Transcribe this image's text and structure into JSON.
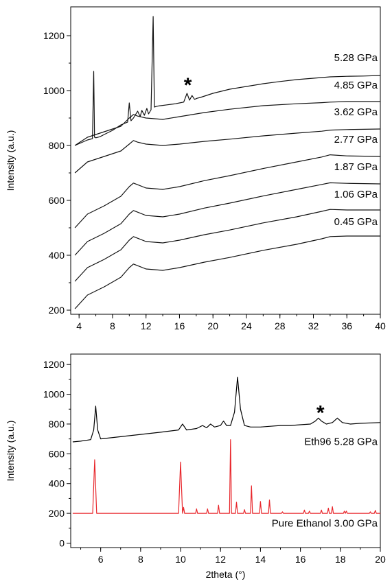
{
  "chart_data": [
    {
      "type": "line",
      "title": "",
      "xlabel": "",
      "ylabel": "Intensity (a.u.)",
      "xlim": [
        3,
        40
      ],
      "ylim": [
        185,
        1305
      ],
      "xticks": [
        4,
        8,
        12,
        16,
        20,
        24,
        28,
        32,
        36,
        40
      ],
      "yticks": [
        200,
        400,
        600,
        800,
        1000,
        1200
      ],
      "grid": false,
      "annotations": [
        {
          "text": "*",
          "x": 17.0,
          "y": 1030
        }
      ],
      "series": [
        {
          "name": "0.45 GPa",
          "label_pos": [
            40,
            510
          ],
          "x": [
            3.5,
            5,
            7,
            9,
            10,
            10.5,
            11,
            12,
            14,
            16,
            19,
            22,
            26,
            30,
            33,
            34,
            36,
            40
          ],
          "y": [
            205,
            255,
            285,
            320,
            355,
            368,
            362,
            350,
            345,
            355,
            375,
            392,
            418,
            440,
            460,
            468,
            470,
            470
          ]
        },
        {
          "name": "1.06 GPa",
          "label_pos": [
            40,
            610
          ],
          "x": [
            3.5,
            5,
            7,
            9,
            10,
            10.5,
            11,
            12,
            14,
            16,
            19,
            22,
            26,
            30,
            33,
            34,
            36,
            40
          ],
          "y": [
            305,
            355,
            385,
            420,
            455,
            468,
            462,
            450,
            445,
            455,
            475,
            492,
            518,
            540,
            560,
            567,
            565,
            565
          ]
        },
        {
          "name": "1.87 GPa",
          "label_pos": [
            40,
            710
          ],
          "x": [
            3.5,
            5,
            7,
            9,
            10,
            10.5,
            11,
            12,
            14,
            16,
            19,
            22,
            26,
            30,
            33,
            34,
            36,
            40
          ],
          "y": [
            400,
            450,
            480,
            515,
            550,
            563,
            557,
            545,
            540,
            550,
            572,
            590,
            616,
            640,
            658,
            664,
            662,
            660
          ]
        },
        {
          "name": "2.77 GPa",
          "label_pos": [
            40,
            810
          ],
          "x": [
            3.5,
            5,
            7,
            9,
            10,
            10.5,
            11,
            12,
            14,
            16,
            19,
            22,
            26,
            30,
            33,
            34,
            36,
            40
          ],
          "y": [
            500,
            550,
            580,
            615,
            650,
            663,
            657,
            645,
            640,
            650,
            672,
            690,
            716,
            740,
            758,
            766,
            762,
            760
          ]
        },
        {
          "name": "3.62 GPa",
          "label_pos": [
            40,
            910
          ],
          "x": [
            3.5,
            5,
            7,
            9,
            10,
            10.5,
            11,
            12,
            14,
            16,
            19,
            22,
            26,
            30,
            33,
            34,
            36,
            40
          ],
          "y": [
            700,
            740,
            760,
            780,
            805,
            818,
            812,
            805,
            800,
            805,
            815,
            823,
            835,
            845,
            852,
            856,
            858,
            860
          ]
        },
        {
          "name": "4.85 GPa",
          "label_pos": [
            40,
            1008
          ],
          "x": [
            3.5,
            5,
            7,
            9,
            10,
            10.5,
            11,
            12,
            14,
            16,
            19,
            22,
            26,
            30,
            33,
            34,
            36,
            40
          ],
          "y": [
            800,
            830,
            850,
            870,
            900,
            913,
            907,
            900,
            895,
            905,
            920,
            932,
            945,
            952,
            956,
            958,
            960,
            960
          ]
        },
        {
          "name": "5.28 GPa",
          "label_pos": [
            40,
            1107
          ],
          "x": [
            3.5,
            5,
            5.6,
            5.75,
            5.85,
            6.0,
            6.5,
            7,
            8,
            9,
            9.8,
            10.0,
            10.2,
            10.5,
            11.0,
            11.3,
            11.5,
            11.8,
            12.1,
            12.3,
            12.6,
            12.85,
            13.0,
            13.2,
            13.5,
            14.0,
            14.5,
            15.0,
            15.5,
            16.0,
            16.5,
            16.9,
            17.2,
            17.5,
            17.8,
            18.1,
            18.5,
            19,
            20,
            22,
            24,
            26,
            28,
            30,
            32,
            34,
            36,
            38,
            40
          ],
          "y": [
            800,
            820,
            825,
            1070,
            830,
            828,
            832,
            840,
            855,
            875,
            885,
            955,
            890,
            900,
            925,
            905,
            928,
            910,
            935,
            915,
            930,
            1270,
            940,
            942,
            944,
            946,
            948,
            950,
            952,
            955,
            958,
            990,
            965,
            982,
            968,
            972,
            975,
            980,
            990,
            1005,
            1015,
            1025,
            1033,
            1040,
            1045,
            1050,
            1052,
            1053,
            1055
          ]
        }
      ]
    },
    {
      "type": "line",
      "title": "",
      "xlabel": "2theta (°)",
      "ylabel": "Intensity (a.u.)",
      "xlim": [
        4.5,
        20
      ],
      "ylim": [
        -30,
        1270
      ],
      "xticks": [
        6,
        8,
        10,
        12,
        14,
        16,
        18,
        20
      ],
      "yticks": [
        0,
        200,
        400,
        600,
        800,
        1000,
        1200
      ],
      "grid": false,
      "annotations": [
        {
          "text": "*",
          "x": 17.0,
          "y": 895
        }
      ],
      "series": [
        {
          "name": "Eth96 5.28 GPa",
          "color": "#000000",
          "label_pos": [
            20,
            660
          ],
          "x": [
            4.6,
            5.0,
            5.5,
            5.65,
            5.75,
            5.85,
            6.0,
            7.0,
            8.0,
            9.0,
            9.9,
            10.1,
            10.3,
            10.8,
            11.1,
            11.3,
            11.5,
            11.7,
            12.0,
            12.15,
            12.3,
            12.5,
            12.7,
            12.85,
            13.0,
            13.2,
            13.5,
            14.0,
            14.5,
            15.0,
            15.5,
            16.0,
            16.5,
            16.75,
            16.9,
            17.05,
            17.3,
            17.6,
            17.85,
            18.1,
            18.5,
            19.0,
            20.0
          ],
          "y": [
            680,
            685,
            695,
            760,
            920,
            760,
            700,
            715,
            730,
            745,
            760,
            800,
            760,
            770,
            790,
            775,
            800,
            780,
            790,
            820,
            790,
            790,
            880,
            1115,
            900,
            790,
            780,
            780,
            785,
            790,
            790,
            795,
            800,
            820,
            840,
            820,
            800,
            810,
            840,
            810,
            800,
            805,
            810
          ]
        },
        {
          "name": "Pure Ethanol 3.00 GPa",
          "color": "#e8262b",
          "label_pos": [
            20,
            110
          ],
          "x": [
            4.6,
            5.6,
            5.7,
            5.8,
            9.9,
            10.0,
            10.1,
            10.15,
            10.2,
            10.75,
            10.8,
            10.85,
            11.3,
            11.35,
            11.4,
            11.85,
            11.9,
            11.95,
            12.45,
            12.5,
            12.55,
            12.75,
            12.8,
            12.85,
            13.15,
            13.2,
            13.25,
            13.5,
            13.55,
            13.6,
            13.95,
            14.0,
            14.05,
            14.4,
            14.45,
            14.5,
            15.05,
            15.1,
            15.15,
            16.15,
            16.2,
            16.25,
            16.4,
            16.45,
            16.5,
            17.0,
            17.05,
            17.1,
            17.35,
            17.4,
            17.45,
            17.55,
            17.6,
            17.65,
            18.15,
            18.2,
            18.25,
            18.3,
            18.35,
            19.45,
            19.5,
            19.55,
            19.7,
            19.75,
            19.8,
            20.0
          ],
          "y": [
            200,
            200,
            560,
            200,
            200,
            545,
            200,
            240,
            200,
            200,
            230,
            200,
            200,
            230,
            200,
            200,
            255,
            200,
            200,
            695,
            200,
            200,
            275,
            200,
            200,
            225,
            200,
            200,
            385,
            200,
            200,
            280,
            200,
            200,
            290,
            200,
            200,
            210,
            200,
            200,
            222,
            200,
            200,
            215,
            200,
            200,
            222,
            200,
            200,
            235,
            200,
            200,
            245,
            200,
            200,
            215,
            200,
            215,
            200,
            200,
            210,
            200,
            200,
            220,
            200,
            200
          ]
        }
      ]
    }
  ]
}
